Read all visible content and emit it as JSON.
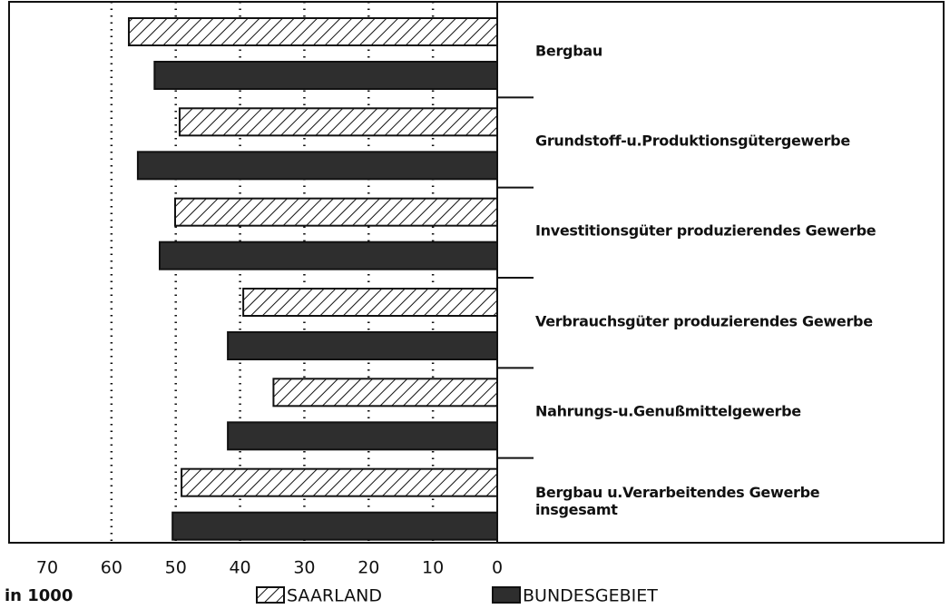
{
  "chart_data": {
    "type": "barh",
    "categories": [
      "Bergbau",
      "Grundstoff-u.Produktionsgütergewerbe",
      "Investitionsgüter produzierendes Gewerbe",
      "Verbrauchsgüter produzierendes Gewerbe",
      "Nahrungs-u.Genußmittelgewerbe",
      "Bergbau u.Verarbeitendes Gewerbe\ninsgesamt"
    ],
    "series": [
      {
        "name": "SAARLAND",
        "color": "#ffffff",
        "hatch": true,
        "values": [
          57.3,
          49.4,
          50.1,
          39.5,
          34.8,
          49.1
        ]
      },
      {
        "name": "BUNDESGEBIET",
        "color": "#2e2e2e",
        "hatch": false,
        "values": [
          53.3,
          55.9,
          52.5,
          41.9,
          41.9,
          50.5
        ]
      }
    ],
    "xlabel": "in 1000",
    "xlim": [
      70,
      0
    ],
    "xticks": [
      70,
      60,
      50,
      40,
      30,
      20,
      10,
      0
    ],
    "grid": true
  }
}
